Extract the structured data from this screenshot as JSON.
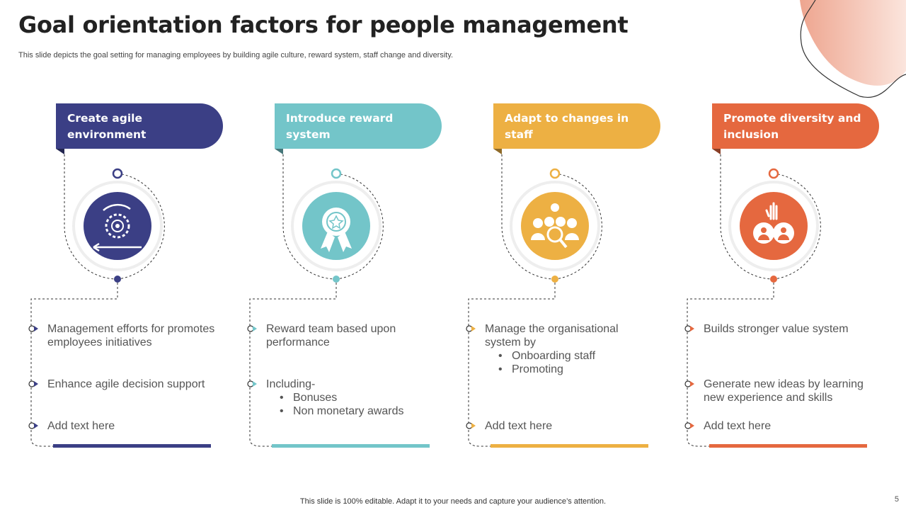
{
  "title": "Goal orientation factors for people management",
  "subtitle": "This slide depicts the goal setting for managing employees by building agile culture, reward system, staff change and diversity.",
  "footer": "This slide is 100% editable. Adapt it to your needs and capture your audience’s attention.",
  "page_number": "5",
  "columns": [
    {
      "title": "Create agile environment",
      "color": "#3b3f85",
      "icon": "agile-gear-cycle-icon",
      "items": [
        {
          "text": "Management efforts for promotes employees initiatives",
          "sub": []
        },
        {
          "text": "Enhance agile decision support",
          "sub": []
        },
        {
          "text": "Add text here",
          "sub": []
        }
      ]
    },
    {
      "title": "Introduce reward system",
      "color": "#73c5c9",
      "icon": "award-ribbon-icon",
      "items": [
        {
          "text": "Reward team based upon performance",
          "sub": []
        },
        {
          "text": "Including-",
          "sub": [
            "Bonuses",
            "Non monetary awards"
          ]
        }
      ]
    },
    {
      "title": "Adapt to changes in staff",
      "color": "#edb043",
      "icon": "staff-search-icon",
      "items": [
        {
          "text": "Manage the organisational system by",
          "sub": [
            "Onboarding staff",
            "Promoting"
          ]
        },
        {
          "text": "Add text here",
          "sub": []
        }
      ]
    },
    {
      "title": "Promote diversity and inclusion",
      "color": "#e5683f",
      "icon": "diversity-people-icon",
      "items": [
        {
          "text": "Builds stronger value system",
          "sub": []
        },
        {
          "text": "Generate new ideas by learning new experience and skills",
          "sub": []
        },
        {
          "text": "Add text here",
          "sub": []
        }
      ]
    }
  ]
}
